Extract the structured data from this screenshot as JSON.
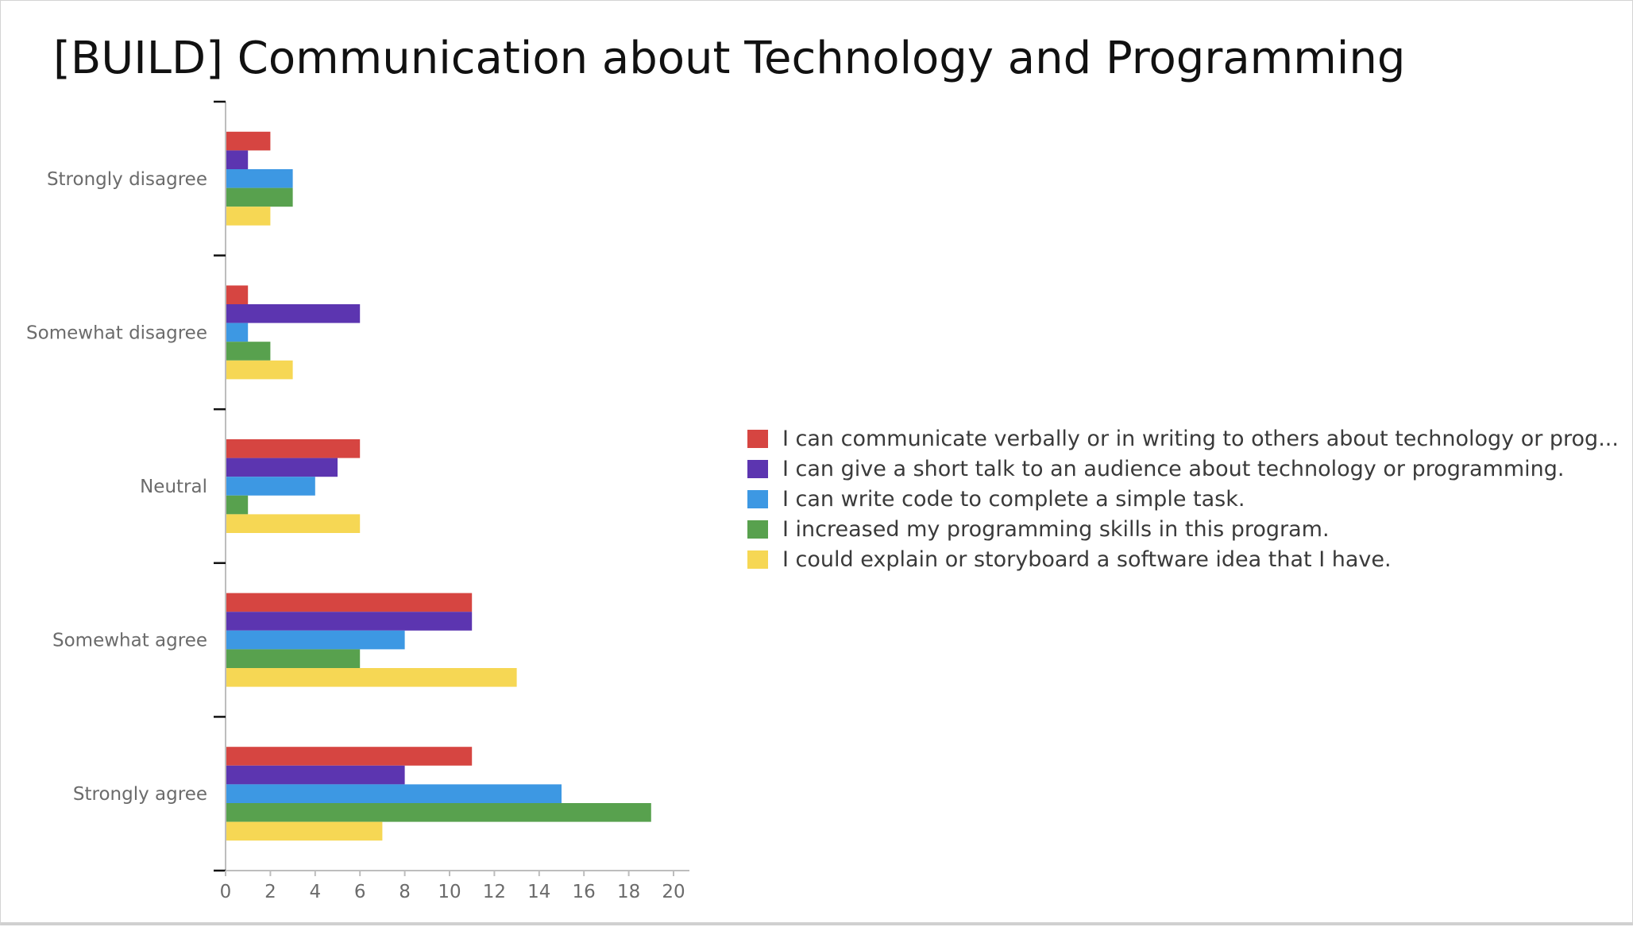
{
  "title": "[BUILD] Communication about Technology and Programming",
  "chart_data": {
    "type": "bar",
    "orientation": "horizontal",
    "categories": [
      "Strongly disagree",
      "Somewhat disagree",
      "Neutral",
      "Somewhat agree",
      "Strongly agree"
    ],
    "series": [
      {
        "name": "I can communicate verbally or in writing to others about technology or prog...",
        "color": "#d64541",
        "values": [
          2,
          1,
          6,
          11,
          11
        ]
      },
      {
        "name": "I can give a short talk to an audience about technology or programming.",
        "color": "#5c35b0",
        "values": [
          1,
          6,
          5,
          11,
          8
        ]
      },
      {
        "name": "I can write code to complete a simple task.",
        "color": "#3d98e3",
        "values": [
          3,
          1,
          4,
          8,
          15
        ]
      },
      {
        "name": "I increased my programming skills in this program.",
        "color": "#58a14e",
        "values": [
          3,
          2,
          1,
          6,
          19
        ]
      },
      {
        "name": "I could explain or storyboard a software idea that I have.",
        "color": "#f6d754",
        "values": [
          2,
          3,
          6,
          13,
          7
        ]
      }
    ],
    "x_ticks": [
      "0",
      "2",
      "4",
      "6",
      "8",
      "10",
      "12",
      "14",
      "16",
      "18",
      "20"
    ],
    "xlim": [
      0,
      20
    ],
    "grid": false,
    "legend_position": "right"
  }
}
